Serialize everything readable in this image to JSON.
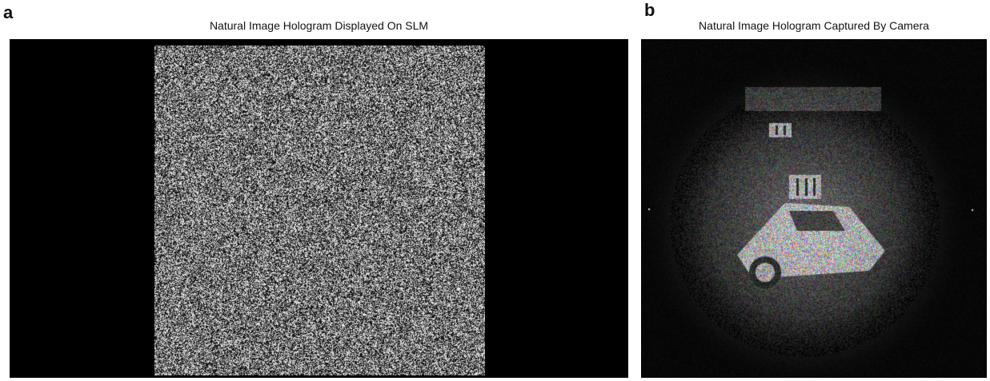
{
  "panel_a": {
    "letter": "a",
    "title": "Natural Image Hologram Displayed On SLM"
  },
  "panel_b": {
    "letter": "b",
    "title": "Natural Image Hologram Captured By Camera"
  },
  "colors": {
    "background": "#000000",
    "noise_light": "#ffffff",
    "page": "#ffffff"
  }
}
